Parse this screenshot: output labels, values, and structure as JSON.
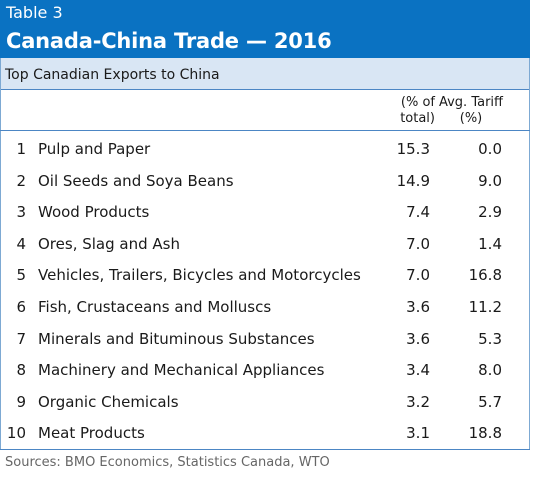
{
  "header": {
    "table_number": "Table 3",
    "title": "Canada-China Trade — 2016",
    "subtitle": "Top Canadian Exports to China"
  },
  "columns": {
    "share_line1": "(% of",
    "share_line2": "total)",
    "tariff_line1": "Avg. Tariff",
    "tariff_line2": "(%)"
  },
  "rows": [
    {
      "rank": "1",
      "product": "Pulp and Paper",
      "share": "15.3",
      "tariff": "0.0"
    },
    {
      "rank": "2",
      "product": "Oil Seeds and Soya Beans",
      "share": "14.9",
      "tariff": "9.0"
    },
    {
      "rank": "3",
      "product": "Wood Products",
      "share": "7.4",
      "tariff": "2.9"
    },
    {
      "rank": "4",
      "product": "Ores, Slag and Ash",
      "share": "7.0",
      "tariff": "1.4"
    },
    {
      "rank": "5",
      "product": "Vehicles, Trailers, Bicycles and Motorcycles",
      "share": "7.0",
      "tariff": "16.8"
    },
    {
      "rank": "6",
      "product": "Fish, Crustaceans and Molluscs",
      "share": "3.6",
      "tariff": "11.2"
    },
    {
      "rank": "7",
      "product": "Minerals and Bituminous Substances",
      "share": "3.6",
      "tariff": "5.3"
    },
    {
      "rank": "8",
      "product": "Machinery and Mechanical Appliances",
      "share": "3.4",
      "tariff": "8.0"
    },
    {
      "rank": "9",
      "product": "Organic Chemicals",
      "share": "3.2",
      "tariff": "5.7"
    },
    {
      "rank": "10",
      "product": "Meat Products",
      "share": "3.1",
      "tariff": "18.8"
    }
  ],
  "footer": {
    "source": "Sources: BMO Economics, Statistics Canada, WTO"
  }
}
